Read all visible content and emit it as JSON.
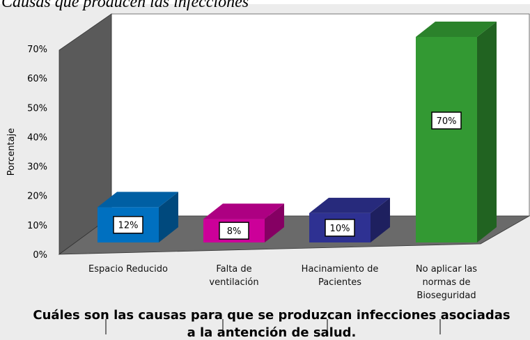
{
  "chart_data": {
    "type": "bar3d",
    "title": "Causas que producen las infecciones",
    "y_label": "Porcentaje",
    "x_label": "Cuáles son las causas para que se produzcan infecciones asociadas a la antención de salud.",
    "categories": [
      "Espacio Reducido",
      "Falta de ventilación",
      "Hacinamiento de Pacientes",
      "No aplicar las normas de Bioseguridad"
    ],
    "values": [
      12,
      8,
      10,
      70
    ],
    "value_labels": [
      "12%",
      "8%",
      "10%",
      "70%"
    ],
    "colors": [
      "#0070c0",
      "#cc0099",
      "#2e3192",
      "#339933"
    ],
    "ylim": [
      0,
      70
    ],
    "yticks": [
      {
        "value": 0,
        "label": "0%"
      },
      {
        "value": 10,
        "label": "10%"
      },
      {
        "value": 20,
        "label": "20%"
      },
      {
        "value": 30,
        "label": "30%"
      },
      {
        "value": 40,
        "label": "40%"
      },
      {
        "value": 50,
        "label": "50%"
      },
      {
        "value": 60,
        "label": "60%"
      },
      {
        "value": 70,
        "label": "70%"
      }
    ]
  }
}
